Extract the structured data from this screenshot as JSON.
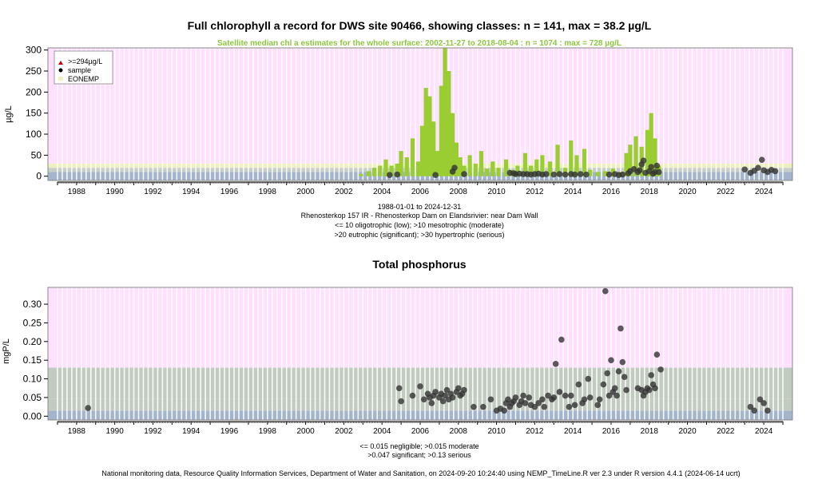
{
  "colors": {
    "pink_band": "#ffe0ff",
    "blue_band": "#a3b4cc",
    "eonemp_band": "#eef0c0",
    "green_band": "#c2cbc0",
    "satellite": "#9acd32",
    "subtitle": "#8cc63f",
    "sample": "#333333",
    "axis": "#000000",
    "grid": "#ffffff"
  },
  "footer": {
    "credit": "National monitoring data, Resource Quality Information Services, Department of Water and Sanitation, on 2024-09-20 10:24:40 using NEMP_TimeLine.R ver 2.3 under R version 4.4.1 (2024-06-14 ucrt)"
  },
  "chart_data": [
    {
      "type": "scatter",
      "title": "Full chlorophyll a record for DWS site 90466, showing classes: n = 141, max = 38.2 µg/L",
      "subtitle": "Satellite median chl a estimates for the whole surface: 2002-11-27 to 2018-08-04 : n = 1074 : max = 728 µg/L",
      "ylabel": "µg/L",
      "ylim": [
        -10,
        305
      ],
      "xlim": [
        1986.5,
        2025.5
      ],
      "y_ticks": [
        0,
        50,
        100,
        150,
        200,
        250,
        300
      ],
      "x_ticks": [
        "1988",
        "1990",
        "1992",
        "1994",
        "1996",
        "1998",
        "2000",
        "2002",
        "2004",
        "2006",
        "2008",
        "2010",
        "2012",
        "2014",
        "2016",
        "2018",
        "2020",
        "2022",
        "2024"
      ],
      "legend": {
        "placement": "top-left",
        "entries": [
          ">=294µg/L",
          "sample",
          "EONEMP"
        ]
      },
      "caption": [
        "1988-01-01 to 2024-12-31",
        "Rhenosterkop 157 IR - Rhenosterkop Dam on Elandsrivier: near Dam Wall",
        "<= 10 oligotrophic (low); >10 mesotrophic (moderate)",
        ">20 eutrophic (significant); >30 hypertrophic (serious)"
      ],
      "class_bands": [
        {
          "name": "oligotrophic",
          "from": -10,
          "to": 10,
          "color": "#a3b4cc"
        },
        {
          "name": "mesotrophic",
          "from": 10,
          "to": 20,
          "color": "#c7cfc8"
        },
        {
          "name": "eutrophic",
          "from": 20,
          "to": 30,
          "color": "#eef0c0"
        },
        {
          "name": "hypertrophic",
          "from": 30,
          "to": 305,
          "color": "#ffe0ff"
        }
      ],
      "satellite_series": [
        [
          2002.9,
          5
        ],
        [
          2003.3,
          12
        ],
        [
          2003.6,
          20
        ],
        [
          2003.9,
          25
        ],
        [
          2004.2,
          40
        ],
        [
          2004.5,
          25
        ],
        [
          2004.8,
          30
        ],
        [
          2005.0,
          60
        ],
        [
          2005.3,
          45
        ],
        [
          2005.6,
          90
        ],
        [
          2005.9,
          35
        ],
        [
          2006.1,
          120
        ],
        [
          2006.3,
          210
        ],
        [
          2006.5,
          190
        ],
        [
          2006.7,
          130
        ],
        [
          2006.9,
          60
        ],
        [
          2007.1,
          215
        ],
        [
          2007.3,
          305
        ],
        [
          2007.5,
          250
        ],
        [
          2007.7,
          150
        ],
        [
          2007.9,
          80
        ],
        [
          2008.1,
          45
        ],
        [
          2008.3,
          25
        ],
        [
          2008.6,
          50
        ],
        [
          2008.9,
          30
        ],
        [
          2009.2,
          60
        ],
        [
          2009.5,
          18
        ],
        [
          2009.8,
          35
        ],
        [
          2010.1,
          20
        ],
        [
          2010.5,
          40
        ],
        [
          2010.8,
          15
        ],
        [
          2011.1,
          25
        ],
        [
          2011.5,
          55
        ],
        [
          2011.8,
          25
        ],
        [
          2012.1,
          40
        ],
        [
          2012.4,
          50
        ],
        [
          2012.8,
          35
        ],
        [
          2013.2,
          75
        ],
        [
          2013.6,
          20
        ],
        [
          2013.9,
          85
        ],
        [
          2014.2,
          50
        ],
        [
          2014.6,
          65
        ],
        [
          2014.9,
          15
        ],
        [
          2015.3,
          10
        ],
        [
          2015.7,
          12
        ],
        [
          2016.1,
          18
        ],
        [
          2016.5,
          10
        ],
        [
          2016.8,
          55
        ],
        [
          2017.0,
          75
        ],
        [
          2017.3,
          95
        ],
        [
          2017.6,
          70
        ],
        [
          2017.9,
          110
        ],
        [
          2018.1,
          150
        ],
        [
          2018.3,
          90
        ],
        [
          2018.5,
          25
        ]
      ],
      "samples": [
        [
          2004.4,
          3
        ],
        [
          2004.8,
          4
        ],
        [
          2006.8,
          3
        ],
        [
          2007.7,
          11
        ],
        [
          2007.8,
          20
        ],
        [
          2008.3,
          5
        ],
        [
          2010.7,
          8
        ],
        [
          2010.9,
          7
        ],
        [
          2011.0,
          5
        ],
        [
          2011.2,
          6
        ],
        [
          2011.4,
          5
        ],
        [
          2011.6,
          5
        ],
        [
          2011.8,
          4
        ],
        [
          2012.0,
          5
        ],
        [
          2012.2,
          6
        ],
        [
          2012.4,
          4
        ],
        [
          2012.6,
          5
        ],
        [
          2013.0,
          4
        ],
        [
          2013.3,
          5
        ],
        [
          2013.6,
          4
        ],
        [
          2013.9,
          5
        ],
        [
          2014.1,
          4
        ],
        [
          2014.4,
          5
        ],
        [
          2014.7,
          4
        ],
        [
          2015.9,
          4
        ],
        [
          2016.2,
          5
        ],
        [
          2016.4,
          3
        ],
        [
          2016.6,
          4
        ],
        [
          2016.9,
          7
        ],
        [
          2017.0,
          12
        ],
        [
          2017.2,
          17
        ],
        [
          2017.4,
          10
        ],
        [
          2017.5,
          14
        ],
        [
          2017.6,
          28
        ],
        [
          2017.7,
          37
        ],
        [
          2017.8,
          8
        ],
        [
          2018.0,
          12
        ],
        [
          2018.1,
          22
        ],
        [
          2018.2,
          6
        ],
        [
          2018.3,
          10
        ],
        [
          2018.4,
          25
        ],
        [
          2018.5,
          10
        ],
        [
          2023.0,
          16
        ],
        [
          2023.3,
          8
        ],
        [
          2023.5,
          13
        ],
        [
          2023.7,
          20
        ],
        [
          2023.9,
          39
        ],
        [
          2024.0,
          14
        ],
        [
          2024.2,
          10
        ],
        [
          2024.4,
          15
        ],
        [
          2024.6,
          12
        ]
      ]
    },
    {
      "type": "scatter",
      "title": "Total phosphorus",
      "ylabel": "mgP/L",
      "ylim": [
        -0.01,
        0.345
      ],
      "xlim": [
        1986.5,
        2025.5
      ],
      "y_ticks": [
        0.0,
        0.05,
        0.1,
        0.15,
        0.2,
        0.25,
        0.3
      ],
      "y_tick_labels": [
        "0.00",
        "0.05",
        "0.10",
        "0.15",
        "0.20",
        "0.25",
        "0.30"
      ],
      "x_ticks": [
        "1988",
        "1990",
        "1992",
        "1994",
        "1996",
        "1998",
        "2000",
        "2002",
        "2004",
        "2006",
        "2008",
        "2010",
        "2012",
        "2014",
        "2016",
        "2018",
        "2020",
        "2022",
        "2024"
      ],
      "caption": [
        "<= 0.015 negligible; >0.015 moderate",
        ">0.047 significant; >0.13 serious"
      ],
      "class_bands": [
        {
          "name": "negligible",
          "from": -0.01,
          "to": 0.015,
          "color": "#a3b4cc"
        },
        {
          "name": "moderate",
          "from": 0.015,
          "to": 0.047,
          "color": "#c2cbc0"
        },
        {
          "name": "significant",
          "from": 0.047,
          "to": 0.13,
          "color": "#c2cbc0"
        },
        {
          "name": "serious",
          "from": 0.13,
          "to": 0.345,
          "color": "#ffe0ff"
        }
      ],
      "samples": [
        [
          1988.6,
          0.022
        ],
        [
          2004.9,
          0.075
        ],
        [
          2005.0,
          0.04
        ],
        [
          2005.6,
          0.055
        ],
        [
          2006.0,
          0.08
        ],
        [
          2006.2,
          0.045
        ],
        [
          2006.4,
          0.06
        ],
        [
          2006.5,
          0.05
        ],
        [
          2006.6,
          0.035
        ],
        [
          2006.7,
          0.055
        ],
        [
          2006.8,
          0.065
        ],
        [
          2007.0,
          0.05
        ],
        [
          2007.1,
          0.06
        ],
        [
          2007.2,
          0.04
        ],
        [
          2007.3,
          0.055
        ],
        [
          2007.4,
          0.07
        ],
        [
          2007.5,
          0.045
        ],
        [
          2007.6,
          0.06
        ],
        [
          2007.7,
          0.05
        ],
        [
          2007.9,
          0.065
        ],
        [
          2008.0,
          0.075
        ],
        [
          2008.1,
          0.055
        ],
        [
          2008.2,
          0.06
        ],
        [
          2008.3,
          0.07
        ],
        [
          2008.8,
          0.025
        ],
        [
          2009.3,
          0.025
        ],
        [
          2009.7,
          0.045
        ],
        [
          2010.0,
          0.015
        ],
        [
          2010.2,
          0.02
        ],
        [
          2010.4,
          0.015
        ],
        [
          2010.5,
          0.035
        ],
        [
          2010.6,
          0.045
        ],
        [
          2010.7,
          0.025
        ],
        [
          2010.8,
          0.035
        ],
        [
          2010.9,
          0.04
        ],
        [
          2011.0,
          0.05
        ],
        [
          2011.2,
          0.03
        ],
        [
          2011.3,
          0.04
        ],
        [
          2011.4,
          0.055
        ],
        [
          2011.5,
          0.035
        ],
        [
          2011.7,
          0.05
        ],
        [
          2011.8,
          0.03
        ],
        [
          2012.0,
          0.025
        ],
        [
          2012.2,
          0.035
        ],
        [
          2012.4,
          0.045
        ],
        [
          2012.5,
          0.025
        ],
        [
          2012.7,
          0.055
        ],
        [
          2012.9,
          0.045
        ],
        [
          2013.0,
          0.05
        ],
        [
          2013.1,
          0.14
        ],
        [
          2013.3,
          0.065
        ],
        [
          2013.4,
          0.205
        ],
        [
          2013.6,
          0.055
        ],
        [
          2013.8,
          0.025
        ],
        [
          2013.9,
          0.055
        ],
        [
          2014.1,
          0.03
        ],
        [
          2014.3,
          0.085
        ],
        [
          2014.5,
          0.035
        ],
        [
          2014.6,
          0.045
        ],
        [
          2014.8,
          0.1
        ],
        [
          2014.9,
          0.05
        ],
        [
          2015.3,
          0.03
        ],
        [
          2015.4,
          0.045
        ],
        [
          2015.6,
          0.085
        ],
        [
          2015.7,
          0.335
        ],
        [
          2015.8,
          0.115
        ],
        [
          2015.9,
          0.055
        ],
        [
          2016.0,
          0.15
        ],
        [
          2016.1,
          0.065
        ],
        [
          2016.2,
          0.075
        ],
        [
          2016.3,
          0.055
        ],
        [
          2016.4,
          0.12
        ],
        [
          2016.5,
          0.235
        ],
        [
          2016.6,
          0.145
        ],
        [
          2016.7,
          0.105
        ],
        [
          2016.8,
          0.07
        ],
        [
          2017.4,
          0.075
        ],
        [
          2017.6,
          0.07
        ],
        [
          2017.7,
          0.055
        ],
        [
          2017.8,
          0.065
        ],
        [
          2017.9,
          0.075
        ],
        [
          2018.0,
          0.07
        ],
        [
          2018.1,
          0.11
        ],
        [
          2018.2,
          0.085
        ],
        [
          2018.3,
          0.075
        ],
        [
          2018.4,
          0.165
        ],
        [
          2018.6,
          0.125
        ],
        [
          2023.3,
          0.025
        ],
        [
          2023.5,
          0.015
        ],
        [
          2023.8,
          0.045
        ],
        [
          2024.0,
          0.035
        ],
        [
          2024.2,
          0.015
        ]
      ]
    }
  ]
}
